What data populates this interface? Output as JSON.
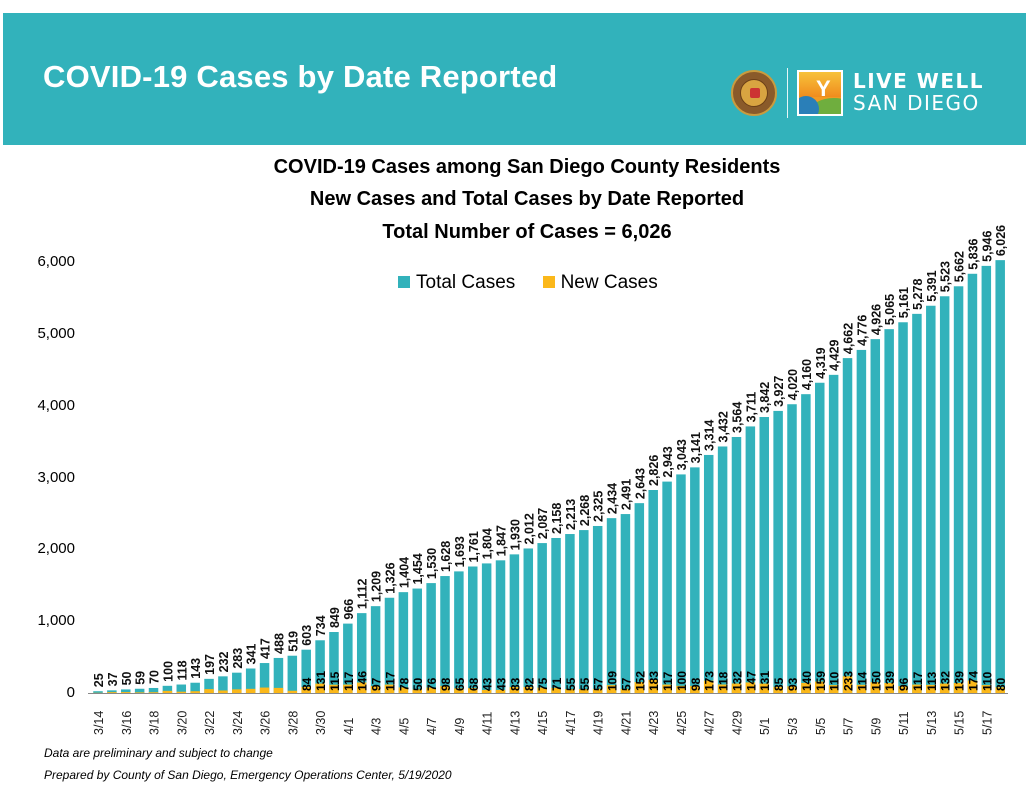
{
  "header": {
    "title": "COVID-19 Cases by Date Reported",
    "logo_text_line1": "LIVE WELL",
    "logo_text_line2": "SAN DIEGO",
    "banner_color": "#32b2bb"
  },
  "footnotes": [
    "Data are preliminary and subject to change",
    "Prepared by County of San Diego, Emergency Operations Center, 5/19/2020"
  ],
  "chart_data": {
    "type": "bar",
    "title": "COVID-19 Cases among San Diego County Residents",
    "subtitle": "New Cases and Total Cases by Date Reported",
    "subtitle2": "Total Number of Cases = 6,026",
    "xlabel": "",
    "ylabel": "",
    "ylim": [
      0,
      6000
    ],
    "yticks": [
      0,
      1000,
      2000,
      3000,
      4000,
      5000,
      6000
    ],
    "ytick_labels": [
      "0",
      "1,000",
      "2,000",
      "3,000",
      "4,000",
      "5,000",
      "6,000"
    ],
    "grid": false,
    "legend_position": "top-center",
    "colors": {
      "total": "#32b2bb",
      "new": "#fbb81a"
    },
    "categories": [
      "3/14",
      "3/15",
      "3/16",
      "3/17",
      "3/18",
      "3/19",
      "3/20",
      "3/21",
      "3/22",
      "3/23",
      "3/24",
      "3/25",
      "3/26",
      "3/27",
      "3/28",
      "3/29",
      "3/30",
      "3/31",
      "4/1",
      "4/2",
      "4/3",
      "4/4",
      "4/5",
      "4/6",
      "4/7",
      "4/8",
      "4/9",
      "4/10",
      "4/11",
      "4/12",
      "4/13",
      "4/14",
      "4/15",
      "4/16",
      "4/17",
      "4/18",
      "4/19",
      "4/20",
      "4/21",
      "4/22",
      "4/23",
      "4/24",
      "4/25",
      "4/26",
      "4/27",
      "4/28",
      "4/29",
      "4/30",
      "5/1",
      "5/2",
      "5/3",
      "5/4",
      "5/5",
      "5/6",
      "5/7",
      "5/8",
      "5/9",
      "5/10",
      "5/11",
      "5/12",
      "5/13",
      "5/14",
      "5/15",
      "5/16",
      "5/17",
      "5/18"
    ],
    "xtick_labels": [
      "3/14",
      "",
      "3/16",
      "",
      "3/18",
      "",
      "3/20",
      "",
      "3/22",
      "",
      "3/24",
      "",
      "3/26",
      "",
      "3/28",
      "",
      "3/30",
      "",
      "4/1",
      "",
      "4/3",
      "",
      "4/5",
      "",
      "4/7",
      "",
      "4/9",
      "",
      "4/11",
      "",
      "4/13",
      "",
      "4/15",
      "",
      "4/17",
      "",
      "4/19",
      "",
      "4/21",
      "",
      "4/23",
      "",
      "4/25",
      "",
      "4/27",
      "",
      "4/29",
      "",
      "5/1",
      "",
      "5/3",
      "",
      "5/5",
      "",
      "5/7",
      "",
      "5/9",
      "",
      "5/11",
      "",
      "5/13",
      "",
      "5/15",
      "",
      "5/17",
      ""
    ],
    "series": [
      {
        "name": "Total Cases",
        "values": [
          25,
          37,
          50,
          59,
          70,
          100,
          118,
          143,
          197,
          232,
          283,
          341,
          417,
          488,
          519,
          603,
          734,
          849,
          966,
          1112,
          1209,
          1326,
          1404,
          1454,
          1530,
          1628,
          1693,
          1761,
          1804,
          1847,
          1930,
          2012,
          2087,
          2158,
          2213,
          2268,
          2325,
          2434,
          2491,
          2643,
          2826,
          2943,
          3043,
          3141,
          3314,
          3432,
          3564,
          3711,
          3842,
          3927,
          4020,
          4160,
          4319,
          4429,
          4662,
          4776,
          4926,
          5065,
          5161,
          5278,
          5391,
          5523,
          5662,
          5836,
          5946,
          6026
        ],
        "labels": [
          "25",
          "37",
          "50",
          "59",
          "70",
          "100",
          "118",
          "143",
          "197",
          "232",
          "283",
          "341",
          "417",
          "488",
          "519",
          "603",
          "734",
          "849",
          "966",
          "1,112",
          "1,209",
          "1,326",
          "1,404",
          "1,454",
          "1,530",
          "1,628",
          "1,693",
          "1,761",
          "1,804",
          "1,847",
          "1,930",
          "2,012",
          "2,087",
          "2,158",
          "2,213",
          "2,268",
          "2,325",
          "2,434",
          "2,491",
          "2,643",
          "2,826",
          "2,943",
          "3,043",
          "3,141",
          "3,314",
          "3,432",
          "3,564",
          "3,711",
          "3,842",
          "3,927",
          "4,020",
          "4,160",
          "4,319",
          "4,429",
          "4,662",
          "4,776",
          "4,926",
          "5,065",
          "5,161",
          "5,278",
          "5,391",
          "5,523",
          "5,662",
          "5,836",
          "5,946",
          "6,026"
        ]
      },
      {
        "name": "New Cases",
        "values": [
          3,
          12,
          13,
          9,
          11,
          30,
          18,
          25,
          54,
          35,
          51,
          58,
          76,
          71,
          31,
          84,
          131,
          115,
          117,
          146,
          97,
          117,
          78,
          50,
          76,
          98,
          65,
          68,
          43,
          43,
          83,
          82,
          75,
          71,
          55,
          55,
          57,
          109,
          57,
          152,
          183,
          117,
          100,
          98,
          173,
          118,
          132,
          147,
          131,
          85,
          93,
          140,
          159,
          110,
          233,
          114,
          150,
          139,
          96,
          117,
          113,
          132,
          139,
          174,
          110,
          80
        ],
        "labels": [
          "",
          "",
          "",
          "",
          "",
          "",
          "",
          "",
          "",
          "",
          "",
          "",
          "",
          "",
          "",
          "84",
          "131",
          "115",
          "117",
          "146",
          "97",
          "117",
          "78",
          "50",
          "76",
          "98",
          "65",
          "68",
          "43",
          "43",
          "83",
          "82",
          "75",
          "71",
          "55",
          "55",
          "57",
          "109",
          "57",
          "152",
          "183",
          "117",
          "100",
          "98",
          "173",
          "118",
          "132",
          "147",
          "131",
          "85",
          "93",
          "140",
          "159",
          "110",
          "233",
          "114",
          "150",
          "139",
          "96",
          "117",
          "113",
          "132",
          "139",
          "174",
          "110",
          "80"
        ]
      }
    ]
  }
}
